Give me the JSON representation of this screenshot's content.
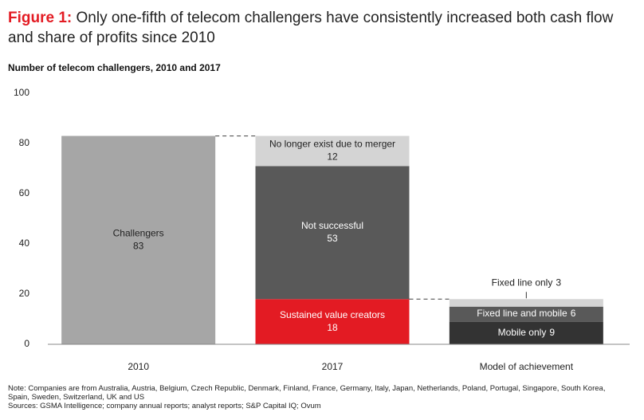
{
  "chart_data": {
    "type": "stacked-bar",
    "title_prefix": "Figure 1:",
    "title": "Only one-fifth of telecom challengers have consistently increased both cash flow and share of profits since 2010",
    "subtitle": "Number of telecom challengers, 2010 and 2017",
    "categories": [
      "2010",
      "2017",
      "Model of achievement"
    ],
    "series": [
      {
        "name": "Challengers",
        "color": "#a6a6a6",
        "values": [
          83,
          null,
          null
        ]
      },
      {
        "name": "Sustained value creators",
        "color": "#e31b23",
        "values": [
          null,
          18,
          null
        ]
      },
      {
        "name": "Not successful",
        "color": "#595959",
        "values": [
          null,
          53,
          null
        ]
      },
      {
        "name": "No longer exist due to merger",
        "color": "#d4d4d4",
        "values": [
          null,
          12,
          null
        ]
      },
      {
        "name": "Mobile only",
        "color": "#333333",
        "values": [
          null,
          null,
          9
        ]
      },
      {
        "name": "Fixed line and mobile",
        "color": "#595959",
        "values": [
          null,
          null,
          6
        ]
      },
      {
        "name": "Fixed line only",
        "color": "#d4d4d4",
        "values": [
          null,
          null,
          3
        ]
      }
    ],
    "ylim": [
      0,
      100
    ],
    "yticks": [
      0,
      20,
      40,
      60,
      80,
      100
    ],
    "note": "Note: Companies are from Australia, Austria, Belgium, Czech Republic, Denmark, Finland, France, Germany, Italy, Japan, Netherlands, Poland, Portugal, Singapore, South Korea, Spain, Sweden, Switzerland, UK and US",
    "sources": "Sources: GSMA Intelligence; company annual reports; analyst reports; S&P Capital IQ; Ovum"
  }
}
